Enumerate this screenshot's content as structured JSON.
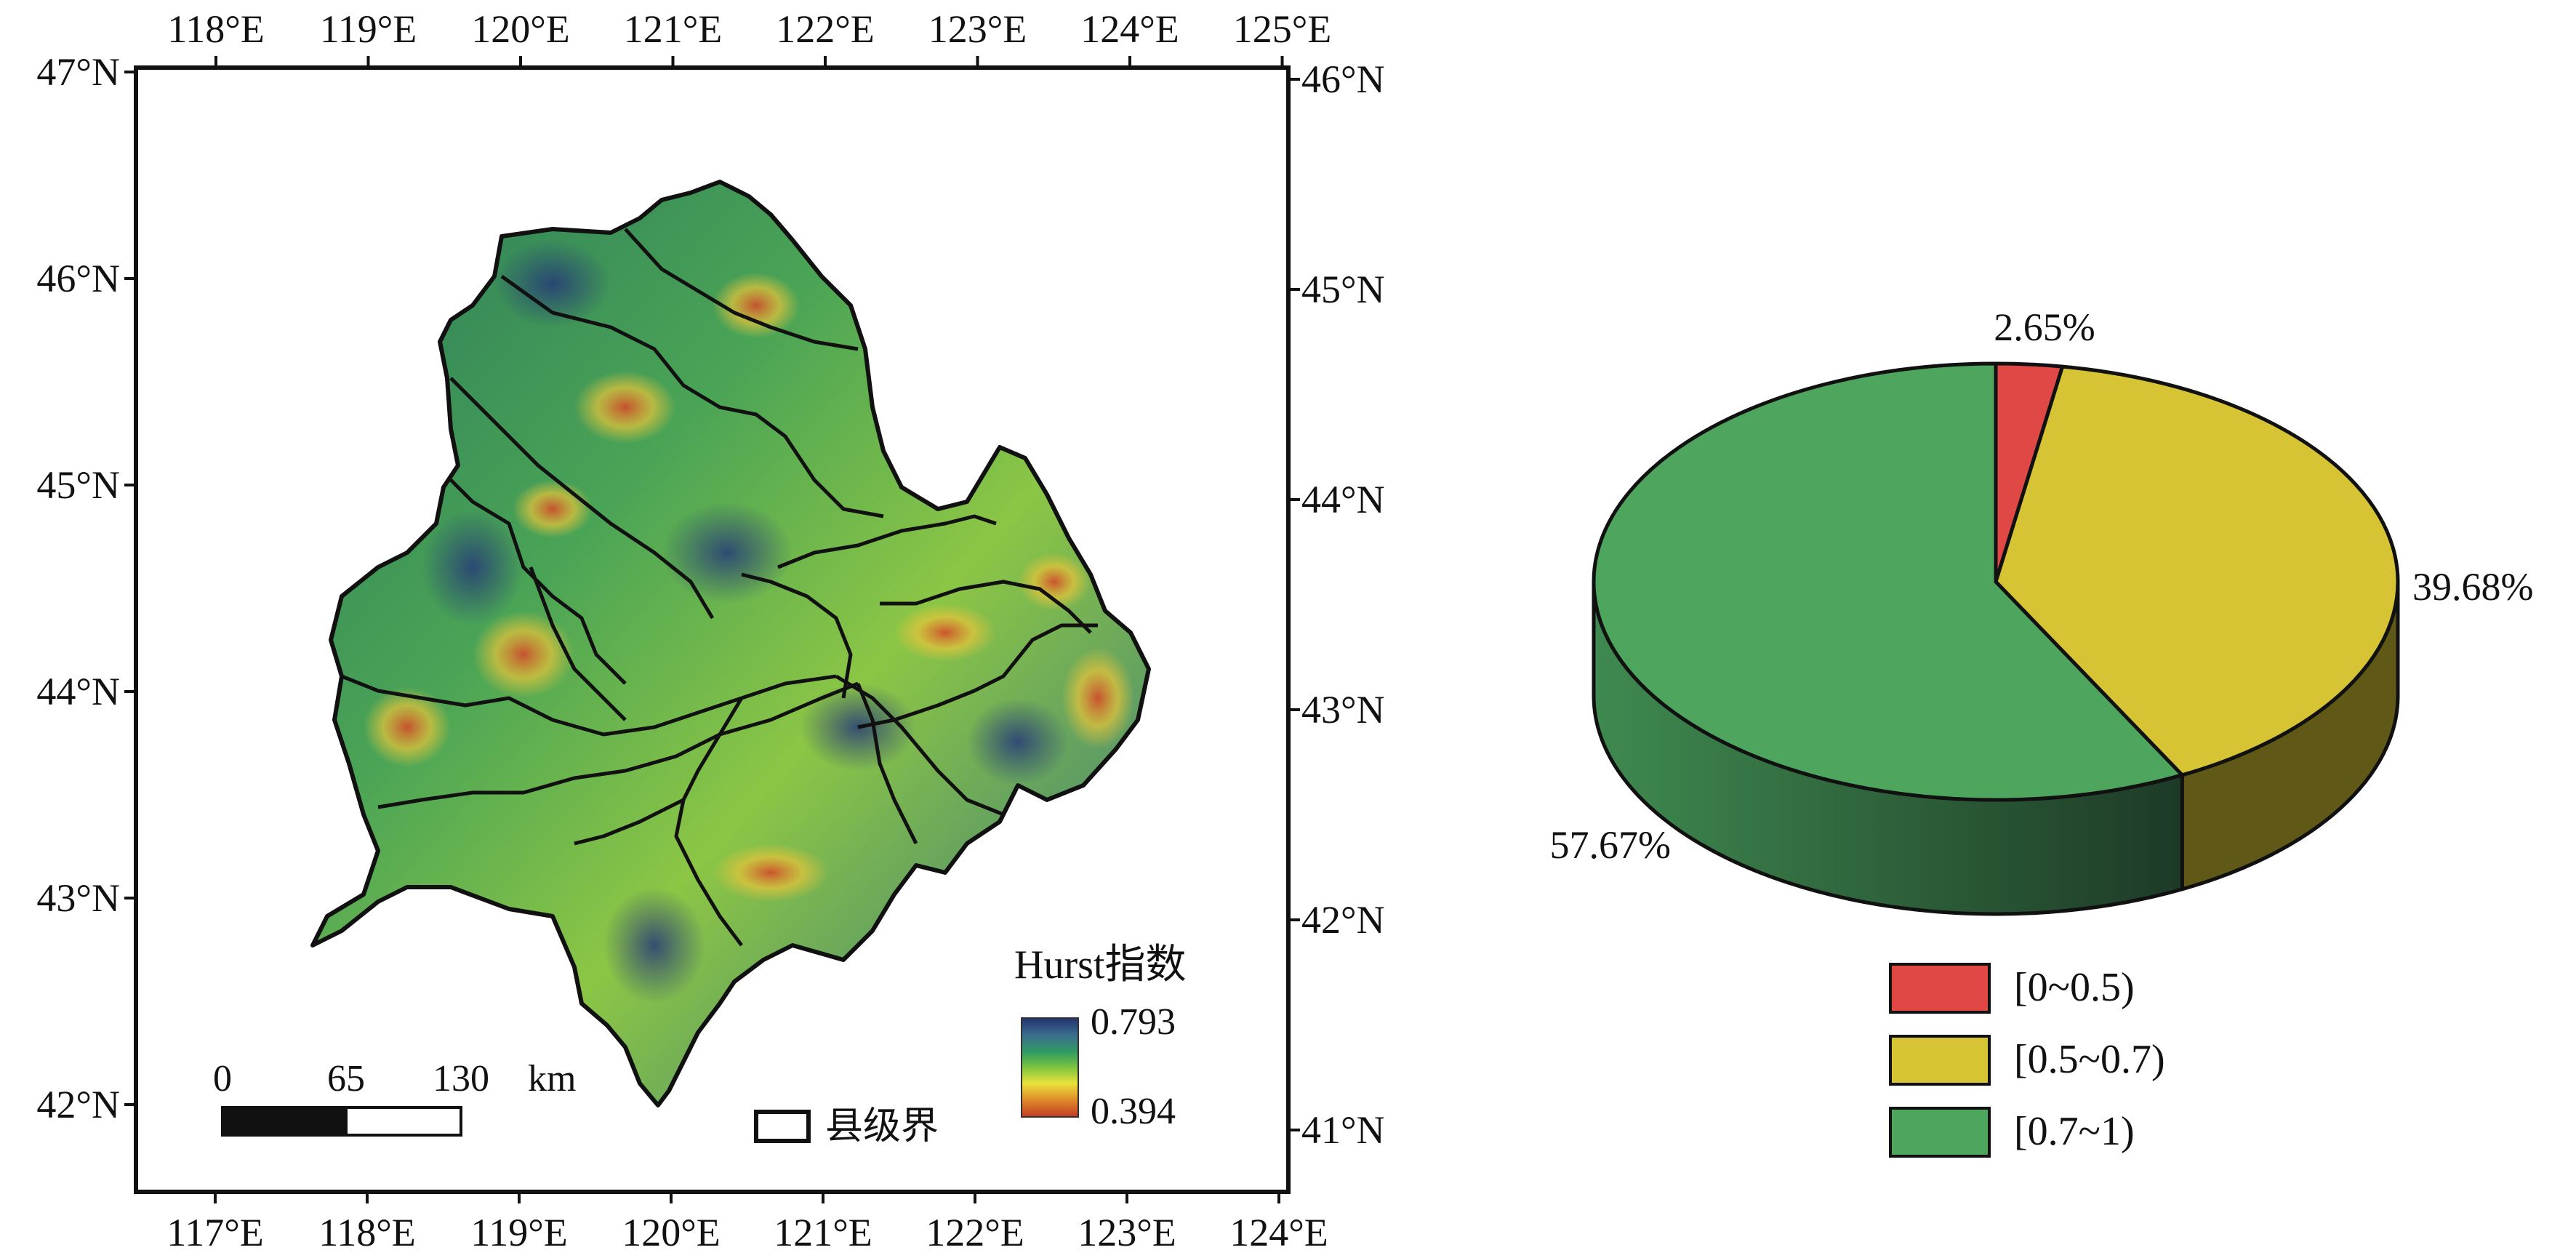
{
  "map": {
    "top_ticks": [
      "118°E",
      "119°E",
      "120°E",
      "121°E",
      "122°E",
      "123°E",
      "124°E",
      "125°E"
    ],
    "bottom_ticks": [
      "117°E",
      "118°E",
      "119°E",
      "120°E",
      "121°E",
      "122°E",
      "123°E",
      "124°E"
    ],
    "left_ticks": [
      "47°N",
      "46°N",
      "45°N",
      "44°N",
      "43°N",
      "42°N"
    ],
    "right_ticks": [
      "46°N",
      "45°N",
      "44°N",
      "43°N",
      "42°N",
      "41°N"
    ],
    "legend": {
      "title": "Hurst指数",
      "max_label": "0.793",
      "min_label": "0.394",
      "gradient_colors": [
        "#23326e",
        "#3b6e8f",
        "#2f9a63",
        "#7cc43f",
        "#e9e23a",
        "#e08a2a",
        "#c23a25"
      ]
    },
    "boundary_label": "县级界",
    "scalebar": {
      "labels": [
        "0",
        "65",
        "130"
      ],
      "unit": "km"
    }
  },
  "chart_data": {
    "type": "pie",
    "slices": [
      {
        "label": "[0~0.5)",
        "value": 2.65,
        "value_label": "2.65%",
        "color": "#e04845"
      },
      {
        "label": "[0.5~0.7)",
        "value": 39.68,
        "value_label": "39.68%",
        "color": "#d6c434"
      },
      {
        "label": "[0.7~1)",
        "value": 57.67,
        "value_label": "57.67%",
        "color": "#4ea65e"
      }
    ],
    "legend_position": "bottom"
  }
}
